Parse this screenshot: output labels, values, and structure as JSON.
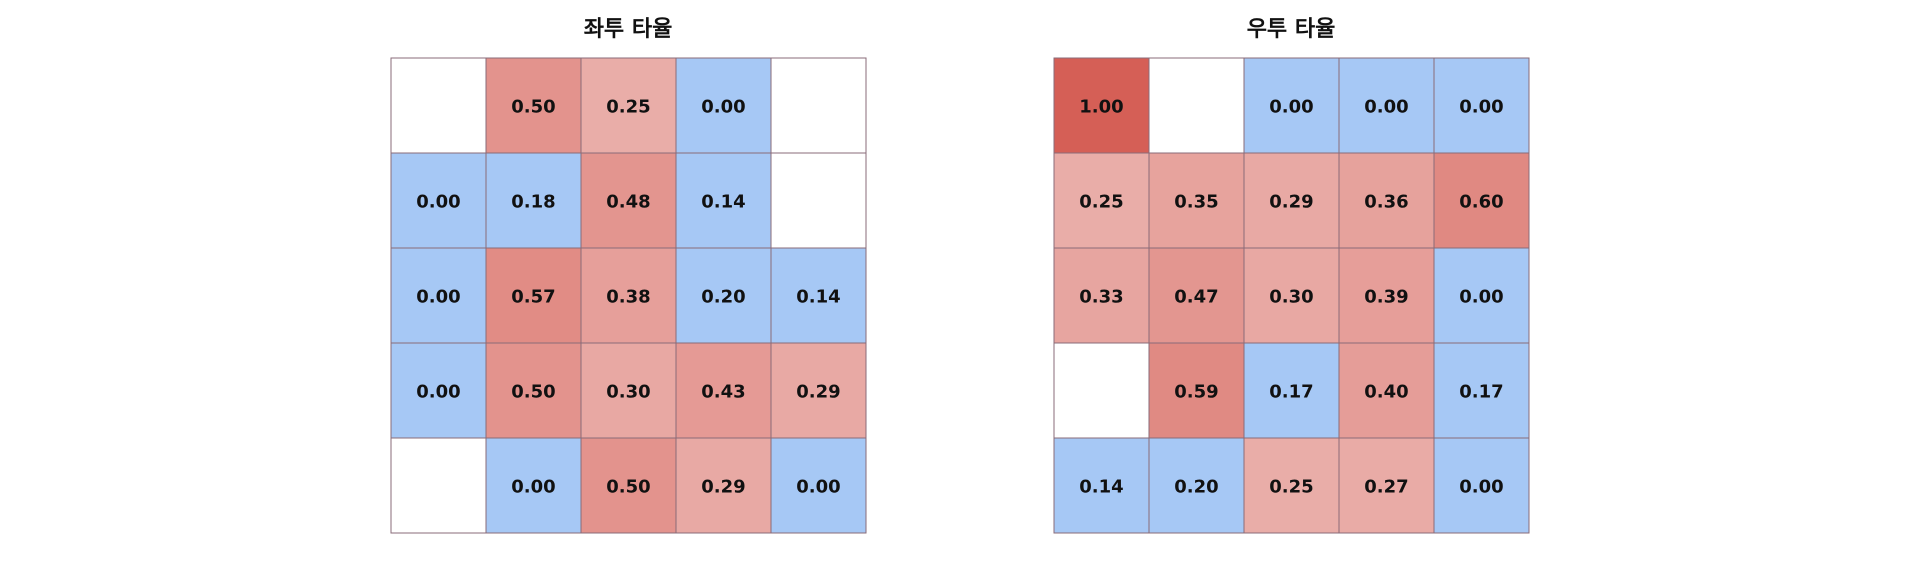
{
  "chart_data": [
    {
      "type": "heatmap",
      "title": "좌투 타율",
      "rows": 5,
      "cols": 5,
      "values": [
        [
          null,
          0.5,
          0.25,
          0.0,
          null
        ],
        [
          0.0,
          0.18,
          0.48,
          0.14,
          null
        ],
        [
          0.0,
          0.57,
          0.38,
          0.2,
          0.14
        ],
        [
          0.0,
          0.5,
          0.3,
          0.43,
          0.29
        ],
        [
          null,
          0.0,
          0.5,
          0.29,
          0.0
        ]
      ]
    },
    {
      "type": "heatmap",
      "title": "우투 타율",
      "rows": 5,
      "cols": 5,
      "values": [
        [
          1.0,
          null,
          0.0,
          0.0,
          0.0
        ],
        [
          0.25,
          0.35,
          0.29,
          0.36,
          0.6
        ],
        [
          0.33,
          0.47,
          0.3,
          0.39,
          0.0
        ],
        [
          null,
          0.59,
          0.17,
          0.4,
          0.17
        ],
        [
          0.14,
          0.2,
          0.25,
          0.27,
          0.0
        ]
      ]
    }
  ],
  "colors": {
    "low": "#a6c8f5",
    "high": "#d55f56",
    "missing": "#ffffff",
    "grid": "#8a6b78"
  }
}
